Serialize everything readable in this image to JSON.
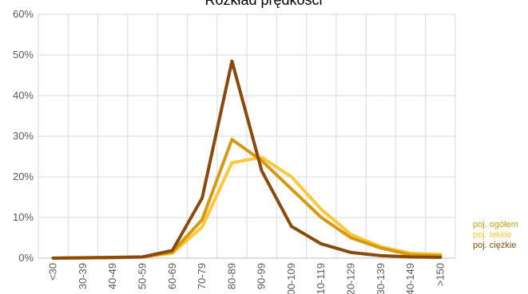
{
  "chart_data": {
    "type": "line",
    "title": "Rozkład prędkości",
    "xlabel": "",
    "ylabel": "",
    "ylim": [
      0,
      60
    ],
    "y_ticks": [
      "0%",
      "10%",
      "20%",
      "30%",
      "40%",
      "50%",
      "60%"
    ],
    "categories": [
      "<30",
      "30-39",
      "40-49",
      "50-59",
      "60-69",
      "70-79",
      "80-89",
      "90-99",
      "100-109",
      "110-119",
      "120-129",
      "130-139",
      "140-149",
      ">150"
    ],
    "grid": true,
    "legend_position": "right",
    "series": [
      {
        "name": "poj. ogółem",
        "color": "#d69a10",
        "values": [
          0.0,
          0.1,
          0.1,
          0.3,
          1.5,
          9.5,
          29.2,
          24.0,
          17.0,
          10.0,
          5.0,
          2.5,
          0.8,
          0.6
        ]
      },
      {
        "name": "poj. lekkie",
        "color": "#ffc83a",
        "values": [
          0.0,
          0.0,
          0.1,
          0.3,
          1.2,
          7.7,
          23.5,
          24.8,
          20.0,
          12.0,
          5.8,
          2.8,
          1.2,
          0.9
        ]
      },
      {
        "name": "poj. ciężkie",
        "color": "#8b4a0b",
        "values": [
          0.0,
          0.1,
          0.2,
          0.3,
          1.9,
          14.8,
          48.5,
          21.5,
          7.8,
          3.5,
          1.4,
          0.6,
          0.3,
          0.2
        ]
      }
    ]
  }
}
